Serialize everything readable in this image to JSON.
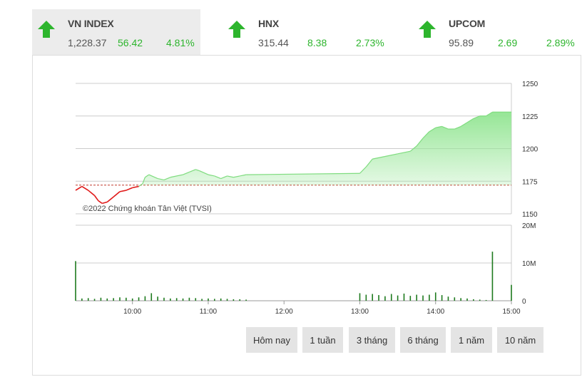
{
  "tickers": [
    {
      "name": "VN INDEX",
      "value": "1,228.37",
      "change": "56.42",
      "percent": "4.81%",
      "direction": "up",
      "icon": "arrow-up-icon"
    },
    {
      "name": "HNX",
      "value": "315.44",
      "change": "8.38",
      "percent": "2.73%",
      "direction": "up",
      "icon": "arrow-up-icon"
    },
    {
      "name": "UPCOM",
      "value": "95.89",
      "change": "2.69",
      "percent": "2.89%",
      "direction": "up",
      "icon": "arrow-up-icon"
    }
  ],
  "colors": {
    "up": "#2db52d",
    "down": "#e01818",
    "reference_line": "#c0392b",
    "area_fill": "#96e696",
    "volume": "#1e7a1e",
    "grid": "#cccccc"
  },
  "watermark": "©2022 Chứng khoán Tân Việt (TVSI)",
  "range_buttons": [
    "Hôm nay",
    "1 tuần",
    "3 tháng",
    "6 tháng",
    "1 năm",
    "10 năm"
  ],
  "chart_data": {
    "type": "area",
    "price": {
      "reference": 1172,
      "ylim": [
        1150,
        1250
      ],
      "yticks": [
        1150,
        1175,
        1200,
        1225,
        1250
      ],
      "points": [
        [
          "09:15",
          1168
        ],
        [
          "09:20",
          1171
        ],
        [
          "09:25",
          1168
        ],
        [
          "09:30",
          1164
        ],
        [
          "09:33",
          1160
        ],
        [
          "09:36",
          1158
        ],
        [
          "09:40",
          1159
        ],
        [
          "09:45",
          1163
        ],
        [
          "09:50",
          1167
        ],
        [
          "09:55",
          1168
        ],
        [
          "10:00",
          1170
        ],
        [
          "10:05",
          1171
        ],
        [
          "10:08",
          1173
        ],
        [
          "10:10",
          1178
        ],
        [
          "10:13",
          1180
        ],
        [
          "10:20",
          1177
        ],
        [
          "10:25",
          1176
        ],
        [
          "10:30",
          1178
        ],
        [
          "10:40",
          1180
        ],
        [
          "10:45",
          1182
        ],
        [
          "10:50",
          1184
        ],
        [
          "10:53",
          1183
        ],
        [
          "11:00",
          1180
        ],
        [
          "11:05",
          1179
        ],
        [
          "11:10",
          1177
        ],
        [
          "11:15",
          1179
        ],
        [
          "11:20",
          1178
        ],
        [
          "11:25",
          1179
        ],
        [
          "11:30",
          1180
        ],
        [
          "13:00",
          1181
        ],
        [
          "13:05",
          1186
        ],
        [
          "13:10",
          1192
        ],
        [
          "13:20",
          1194
        ],
        [
          "13:30",
          1196
        ],
        [
          "13:40",
          1198
        ],
        [
          "13:45",
          1202
        ],
        [
          "13:50",
          1208
        ],
        [
          "13:55",
          1213
        ],
        [
          "14:00",
          1216
        ],
        [
          "14:05",
          1217
        ],
        [
          "14:10",
          1215
        ],
        [
          "14:15",
          1215
        ],
        [
          "14:20",
          1217
        ],
        [
          "14:25",
          1220
        ],
        [
          "14:30",
          1223
        ],
        [
          "14:35",
          1225
        ],
        [
          "14:40",
          1225
        ],
        [
          "14:45",
          1228
        ],
        [
          "15:00",
          1228
        ]
      ]
    },
    "volume": {
      "unit": "M",
      "ylim": [
        0,
        20
      ],
      "yticks": [
        "0",
        "10M",
        "20M"
      ],
      "points": [
        [
          "09:15",
          10.5
        ],
        [
          "09:20",
          0.6
        ],
        [
          "09:25",
          0.7
        ],
        [
          "09:30",
          0.5
        ],
        [
          "09:35",
          0.8
        ],
        [
          "09:40",
          0.6
        ],
        [
          "09:45",
          0.7
        ],
        [
          "09:50",
          0.9
        ],
        [
          "09:55",
          0.8
        ],
        [
          "10:00",
          0.6
        ],
        [
          "10:05",
          0.9
        ],
        [
          "10:10",
          1.2
        ],
        [
          "10:15",
          2.0
        ],
        [
          "10:20",
          1.1
        ],
        [
          "10:25",
          0.8
        ],
        [
          "10:30",
          0.6
        ],
        [
          "10:35",
          0.7
        ],
        [
          "10:40",
          0.6
        ],
        [
          "10:45",
          0.8
        ],
        [
          "10:50",
          0.7
        ],
        [
          "10:55",
          0.5
        ],
        [
          "11:00",
          0.6
        ],
        [
          "11:05",
          0.5
        ],
        [
          "11:10",
          0.6
        ],
        [
          "11:15",
          0.5
        ],
        [
          "11:20",
          0.4
        ],
        [
          "11:25",
          0.4
        ],
        [
          "11:30",
          0.3
        ],
        [
          "13:00",
          2.0
        ],
        [
          "13:05",
          1.6
        ],
        [
          "13:10",
          1.8
        ],
        [
          "13:15",
          1.5
        ],
        [
          "13:20",
          1.2
        ],
        [
          "13:25",
          1.8
        ],
        [
          "13:30",
          1.4
        ],
        [
          "13:35",
          1.9
        ],
        [
          "13:40",
          1.3
        ],
        [
          "13:45",
          1.6
        ],
        [
          "13:50",
          1.4
        ],
        [
          "13:55",
          1.6
        ],
        [
          "14:00",
          2.2
        ],
        [
          "14:05",
          1.5
        ],
        [
          "14:10",
          1.1
        ],
        [
          "14:15",
          0.9
        ],
        [
          "14:20",
          0.7
        ],
        [
          "14:25",
          0.6
        ],
        [
          "14:30",
          0.4
        ],
        [
          "14:35",
          0.3
        ],
        [
          "14:40",
          0.2
        ],
        [
          "14:45",
          13.0
        ],
        [
          "15:00",
          4.2
        ]
      ]
    },
    "x_ticks": [
      "10:00",
      "11:00",
      "12:00",
      "13:00",
      "14:00",
      "15:00"
    ],
    "x_range": [
      "09:15",
      "15:00"
    ],
    "grid": true,
    "legend": "none"
  }
}
